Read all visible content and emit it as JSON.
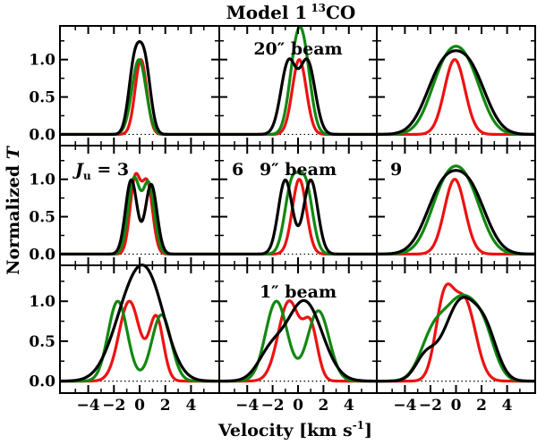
{
  "chart_data": {
    "type": "line",
    "title": "Model 1",
    "title_isotope": "13",
    "title_molecule": "CO",
    "xlabel": "Velocity [km s",
    "xlabel_exp": "-1",
    "xlabel_close": "]",
    "ylabel_prefix": "Normalized ",
    "ylabel_var": "T",
    "xlim": [
      -6.2,
      6.2
    ],
    "ylim": [
      -0.15,
      1.45
    ],
    "x_tick_values": [
      -4,
      -2,
      0,
      2,
      4
    ],
    "x_tick_labels": [
      "−4",
      "−2",
      "0",
      "2",
      "4"
    ],
    "y_tick_values": [
      0.0,
      0.5,
      1.0
    ],
    "y_tick_labels": [
      "0.0",
      "0.5",
      "1.0"
    ],
    "zero_line": "dotted",
    "column_labels": [
      "3",
      "6",
      "9"
    ],
    "column_label_prefix": "J",
    "column_label_sub": "u",
    "column_label_eq": " = ",
    "row_labels": [
      "20″ beam",
      "9″ beam",
      "1″ beam"
    ],
    "series_colors": [
      "#ee1111",
      "#118811",
      "#000000"
    ],
    "panels": [
      {
        "row": 0,
        "col": 0,
        "series": [
          {
            "name": "red",
            "shape": [
              [
                0.1,
                0.45,
                1.0
              ]
            ]
          },
          {
            "name": "green",
            "shape": [
              [
                -0.05,
                0.55,
                1.0
              ]
            ]
          },
          {
            "name": "black",
            "shape": [
              [
                -0.4,
                0.45,
                0.92
              ],
              [
                0.4,
                0.45,
                0.92
              ]
            ]
          }
        ]
      },
      {
        "row": 0,
        "col": 1,
        "series": [
          {
            "name": "red",
            "shape": [
              [
                0.1,
                0.55,
                1.0
              ]
            ]
          },
          {
            "name": "green",
            "shape": [
              [
                -0.2,
                0.55,
                0.88
              ],
              [
                0.5,
                0.55,
                0.88
              ]
            ]
          },
          {
            "name": "black",
            "shape": [
              [
                -0.75,
                0.6,
                0.96
              ],
              [
                0.75,
                0.6,
                0.96
              ]
            ]
          }
        ]
      },
      {
        "row": 0,
        "col": 2,
        "series": [
          {
            "name": "red",
            "shape": [
              [
                -0.1,
                0.8,
                1.0
              ]
            ]
          },
          {
            "name": "green",
            "shape": [
              [
                -0.9,
                1.2,
                0.78
              ],
              [
                0.9,
                1.2,
                0.78
              ]
            ]
          },
          {
            "name": "black",
            "shape": [
              [
                -1.1,
                1.3,
                0.8
              ],
              [
                1.1,
                1.3,
                0.8
              ]
            ]
          }
        ]
      },
      {
        "row": 1,
        "col": 0,
        "series": [
          {
            "name": "red",
            "shape": [
              [
                -0.35,
                0.4,
                0.99
              ],
              [
                0.6,
                0.42,
                0.93
              ]
            ]
          },
          {
            "name": "green",
            "shape": [
              [
                -0.45,
                0.45,
                0.99
              ],
              [
                0.7,
                0.45,
                0.93
              ]
            ]
          },
          {
            "name": "black",
            "shape": [
              [
                -0.65,
                0.45,
                0.99
              ],
              [
                0.9,
                0.45,
                0.93
              ]
            ]
          }
        ]
      },
      {
        "row": 1,
        "col": 1,
        "series": [
          {
            "name": "red",
            "shape": [
              [
                0.1,
                0.55,
                1.0
              ]
            ]
          },
          {
            "name": "green",
            "shape": [
              [
                -0.5,
                0.55,
                0.9
              ],
              [
                0.6,
                0.55,
                0.9
              ]
            ]
          },
          {
            "name": "black",
            "shape": [
              [
                -1.0,
                0.55,
                0.99
              ],
              [
                1.0,
                0.55,
                0.99
              ]
            ]
          }
        ]
      },
      {
        "row": 1,
        "col": 2,
        "series": [
          {
            "name": "red",
            "shape": [
              [
                -0.1,
                0.8,
                1.0
              ]
            ]
          },
          {
            "name": "green",
            "shape": [
              [
                -0.9,
                1.2,
                0.78
              ],
              [
                0.9,
                1.2,
                0.78
              ]
            ]
          },
          {
            "name": "black",
            "shape": [
              [
                -1.1,
                1.3,
                0.8
              ],
              [
                1.1,
                1.3,
                0.8
              ]
            ]
          }
        ]
      },
      {
        "row": 2,
        "col": 0,
        "series": [
          {
            "name": "red",
            "shape": [
              [
                -0.8,
                0.8,
                1.0
              ],
              [
                1.3,
                0.55,
                0.79
              ]
            ]
          },
          {
            "name": "green",
            "shape": [
              [
                -1.7,
                0.75,
                1.0
              ],
              [
                1.7,
                0.75,
                0.83
              ]
            ]
          },
          {
            "name": "black",
            "shape": [
              [
                -0.8,
                1.4,
                0.85
              ],
              [
                0.9,
                1.3,
                0.92
              ]
            ]
          }
        ]
      },
      {
        "row": 2,
        "col": 1,
        "series": [
          {
            "name": "red",
            "shape": [
              [
                -0.7,
                0.85,
                1.0
              ],
              [
                1.0,
                0.55,
                0.63
              ]
            ]
          },
          {
            "name": "green",
            "shape": [
              [
                -1.7,
                0.85,
                1.0
              ],
              [
                1.6,
                0.85,
                0.88
              ]
            ]
          },
          {
            "name": "black",
            "shape": [
              [
                -2.2,
                1.0,
                0.32
              ],
              [
                0.5,
                1.4,
                1.0
              ]
            ]
          }
        ]
      },
      {
        "row": 2,
        "col": 2,
        "series": [
          {
            "name": "red",
            "shape": [
              [
                -0.9,
                0.7,
                1.0
              ],
              [
                0.7,
                0.85,
                0.98
              ]
            ]
          },
          {
            "name": "green",
            "shape": [
              [
                -1.8,
                1.0,
                0.55
              ],
              [
                0.4,
                1.2,
                0.96
              ],
              [
                2.2,
                0.9,
                0.48
              ]
            ]
          },
          {
            "name": "black",
            "shape": [
              [
                -2.4,
                0.8,
                0.28
              ],
              [
                0.4,
                1.3,
                1.0
              ],
              [
                2.4,
                0.9,
                0.45
              ]
            ]
          }
        ]
      }
    ]
  }
}
